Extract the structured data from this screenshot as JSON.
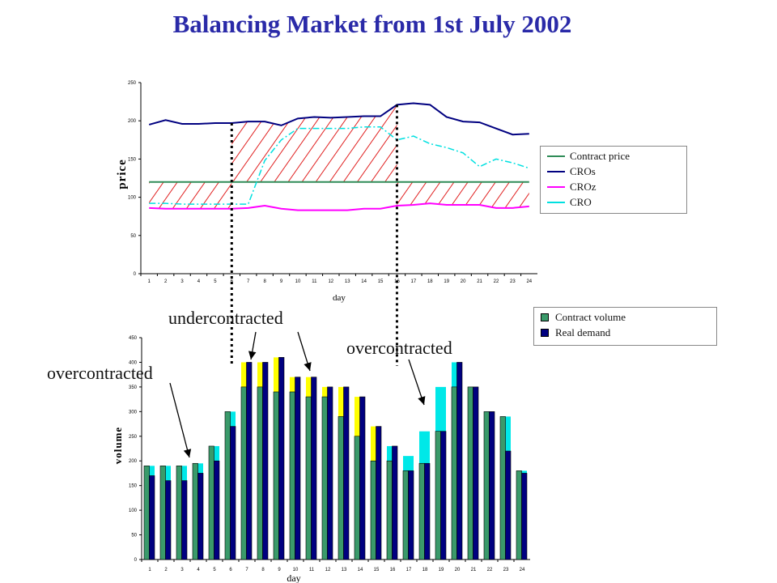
{
  "page": {
    "title": "Balancing Market from 1st July 2002"
  },
  "annotations": {
    "under": "undercontracted",
    "over_left": "overcontracted",
    "over_right": "overcontracted"
  },
  "chart_data": [
    {
      "type": "line",
      "xlabel": "day",
      "ylabel": "price",
      "ylim": [
        0,
        250
      ],
      "yticks": [
        0,
        50,
        100,
        150,
        200,
        250
      ],
      "x": [
        1,
        2,
        3,
        4,
        5,
        6,
        7,
        8,
        9,
        10,
        11,
        12,
        13,
        14,
        15,
        16,
        17,
        18,
        19,
        20,
        21,
        22,
        23,
        24
      ],
      "legend_position": "right",
      "series": [
        {
          "name": "Contract price",
          "color": "#2e8b57",
          "values": [
            120,
            120,
            120,
            120,
            120,
            120,
            120,
            120,
            120,
            120,
            120,
            120,
            120,
            120,
            120,
            120,
            120,
            120,
            120,
            120,
            120,
            120,
            120,
            120
          ]
        },
        {
          "name": "CROs",
          "color": "#000080",
          "values": [
            195,
            201,
            196,
            196,
            197,
            197,
            199,
            199,
            194,
            203,
            205,
            204,
            205,
            206,
            206,
            221,
            223,
            221,
            205,
            199,
            198,
            190,
            182,
            183
          ]
        },
        {
          "name": "CROz",
          "color": "#ff00ff",
          "values": [
            86,
            85,
            85,
            85,
            85,
            85,
            86,
            89,
            85,
            83,
            83,
            83,
            83,
            85,
            85,
            89,
            90,
            92,
            90,
            90,
            90,
            86,
            86,
            88
          ]
        },
        {
          "name": "CRO",
          "color": "#00e0e0",
          "values": [
            92,
            92,
            91,
            91,
            91,
            91,
            91,
            148,
            175,
            190,
            190,
            190,
            190,
            192,
            192,
            175,
            180,
            170,
            165,
            158,
            140,
            150,
            145,
            138
          ]
        }
      ],
      "hatched_regions": [
        {
          "from_day": 1,
          "to_day": 6,
          "between": [
            "CROz",
            "Contract price"
          ]
        },
        {
          "from_day": 6,
          "to_day": 16,
          "between": [
            "Contract price",
            "CROs"
          ]
        },
        {
          "from_day": 16,
          "to_day": 24,
          "between": [
            "CROz",
            "Contract price"
          ]
        }
      ],
      "divider_days": [
        6,
        16
      ]
    },
    {
      "type": "bar",
      "xlabel": "day",
      "ylabel": "volume",
      "ylim": [
        0,
        450
      ],
      "yticks": [
        0,
        50,
        100,
        150,
        200,
        250,
        300,
        350,
        400,
        450
      ],
      "categories": [
        "1",
        "2",
        "3",
        "4",
        "5",
        "6",
        "7",
        "8",
        "9",
        "10",
        "11",
        "12",
        "13",
        "14",
        "15",
        "16",
        "17",
        "18",
        "19",
        "20",
        "21",
        "22",
        "23",
        "24"
      ],
      "legend_position": "top-right",
      "series": [
        {
          "name": "Contract volume",
          "color": "#3a9a6a",
          "values": [
            190,
            190,
            190,
            195,
            230,
            300,
            350,
            350,
            340,
            340,
            330,
            330,
            290,
            250,
            200,
            200,
            180,
            195,
            260,
            350,
            350,
            300,
            290,
            180
          ]
        },
        {
          "name": "Real demand",
          "color": "#000080",
          "values": [
            170,
            160,
            160,
            175,
            200,
            270,
            400,
            400,
            410,
            370,
            370,
            350,
            350,
            330,
            270,
            230,
            180,
            195,
            260,
            400,
            350,
            300,
            220,
            175
          ]
        },
        {
          "name": "",
          "color": "#00e8e8",
          "values": [
            190,
            190,
            190,
            195,
            230,
            300,
            null,
            null,
            null,
            null,
            null,
            null,
            null,
            null,
            null,
            230,
            210,
            260,
            350,
            400,
            350,
            300,
            290,
            180
          ]
        },
        {
          "name": "",
          "color": "#ffff00",
          "values": [
            null,
            null,
            null,
            null,
            null,
            null,
            400,
            400,
            410,
            370,
            370,
            350,
            350,
            330,
            270,
            null,
            null,
            null,
            null,
            null,
            null,
            null,
            null,
            null
          ]
        }
      ]
    }
  ]
}
